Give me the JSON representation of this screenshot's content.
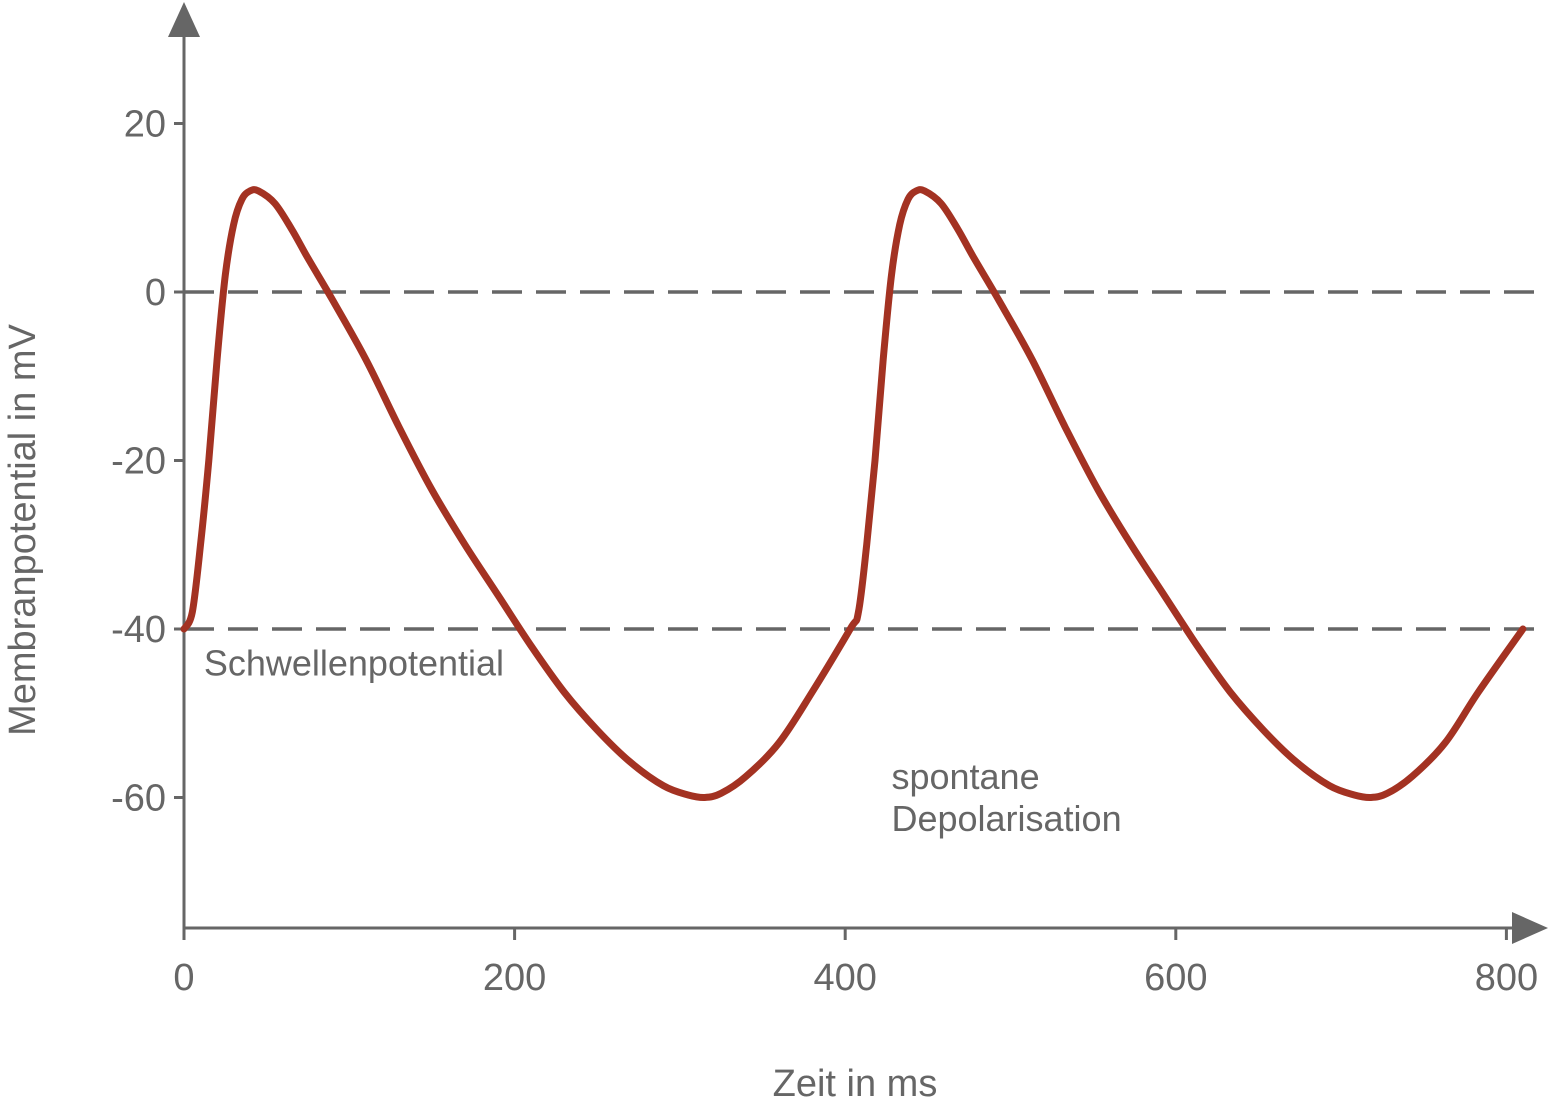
{
  "chart_data": {
    "type": "line",
    "xlabel": "Zeit in ms",
    "ylabel": "Membranpotential in mV",
    "xlim": [
      0,
      810
    ],
    "ylim": [
      -75,
      30
    ],
    "x_ticks": [
      0,
      200,
      400,
      600,
      800
    ],
    "y_ticks": [
      20,
      0,
      -20,
      -40,
      -60
    ],
    "x_tick_labels": [
      "0",
      "200",
      "400",
      "600",
      "800"
    ],
    "y_tick_labels": [
      "20",
      "0",
      "-20",
      "-40",
      "-60"
    ],
    "grid": false,
    "reference_lines": [
      {
        "y": 0,
        "style": "dashed"
      },
      {
        "y": -40,
        "style": "dashed"
      }
    ],
    "series": [
      {
        "color": "#a33222",
        "x": [
          0,
          5,
          10,
          15,
          20,
          25,
          30,
          35,
          40,
          45,
          55,
          65,
          75,
          90,
          110,
          130,
          150,
          170,
          190,
          210,
          230,
          250,
          270,
          290,
          305,
          315,
          325,
          340,
          360,
          380,
          403,
          408,
          413,
          418,
          423,
          428,
          433,
          438,
          443,
          448,
          458,
          468,
          478,
          493,
          513,
          533,
          553,
          573,
          593,
          613,
          633,
          653,
          673,
          693,
          708,
          718,
          728,
          743,
          763,
          783,
          810
        ],
        "y": [
          -40,
          -38,
          -30,
          -20,
          -8,
          2,
          8,
          11,
          12,
          12,
          10.5,
          7.5,
          4,
          -1,
          -8,
          -16,
          -23.5,
          -30,
          -36,
          -42,
          -47.5,
          -52,
          -55.8,
          -58.6,
          -59.7,
          -60,
          -59.5,
          -57.5,
          -53.5,
          -47.5,
          -40,
          -38,
          -30,
          -20,
          -8,
          2,
          8,
          11,
          12,
          12,
          10.5,
          7.5,
          4,
          -1,
          -8,
          -16,
          -23.5,
          -30,
          -36,
          -42,
          -47.5,
          -52,
          -55.8,
          -58.6,
          -59.7,
          -60,
          -59.5,
          -57.5,
          -53.5,
          -47.5,
          -40
        ]
      }
    ],
    "annotations": [
      {
        "text": "Schwellenpotential",
        "x": 12,
        "y": -45.5
      },
      {
        "text": "spontane",
        "x": 428,
        "y": -59
      },
      {
        "text": "Depolarisation",
        "x": 428,
        "y": -64
      }
    ]
  }
}
